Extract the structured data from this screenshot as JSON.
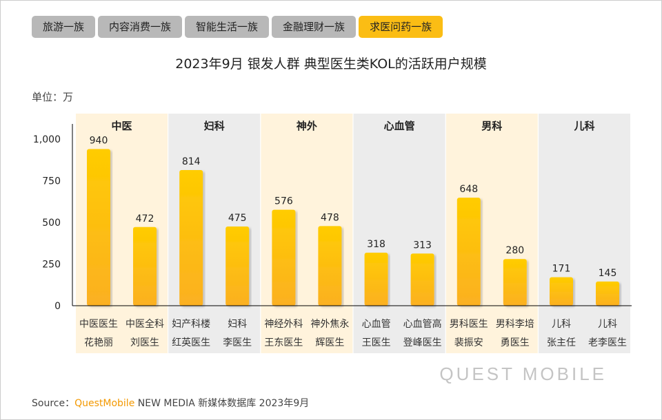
{
  "tabs": [
    {
      "label": "旅游一族",
      "active": false
    },
    {
      "label": "内容消费一族",
      "active": false
    },
    {
      "label": "智能生活一族",
      "active": false
    },
    {
      "label": "金融理财一族",
      "active": false
    },
    {
      "label": "求医问药一族",
      "active": true
    }
  ],
  "unit": "单位：万",
  "source": {
    "prefix": "Source：",
    "brand": "QuestMobile",
    "rest": " NEW MEDIA 新媒体数据库 2023年9月"
  },
  "watermark": "QUEST MOBILE",
  "colors": {
    "bar_top": "#ffcc00",
    "bar_bottom": "#fbb022",
    "band_warm": "#fff3dc",
    "band_gray": "#ececec",
    "active_tab": "#fbbd14"
  },
  "chart_data": {
    "type": "bar",
    "title": "2023年9月 银发人群 典型医生类KOL的活跃用户规模",
    "ylim": [
      0,
      1000
    ],
    "yticks": [
      "0",
      "250",
      "500",
      "750",
      "1,000"
    ],
    "groups": [
      {
        "name": "中医",
        "categories": [
          [
            "中医医生",
            "花艳丽"
          ],
          [
            "中医全科",
            "刘医生"
          ]
        ],
        "values": [
          940,
          472
        ]
      },
      {
        "name": "妇科",
        "categories": [
          [
            "妇产科楼",
            "红英医生"
          ],
          [
            "妇科",
            "李医生"
          ]
        ],
        "values": [
          814,
          475
        ]
      },
      {
        "name": "神外",
        "categories": [
          [
            "神经外科",
            "王东医生"
          ],
          [
            "神外焦永",
            "辉医生"
          ]
        ],
        "values": [
          576,
          478
        ]
      },
      {
        "name": "心血管",
        "categories": [
          [
            "心血管",
            "王医生"
          ],
          [
            "心血管高",
            "登峰医生"
          ]
        ],
        "values": [
          318,
          313
        ]
      },
      {
        "name": "男科",
        "categories": [
          [
            "男科医生",
            "裴振安"
          ],
          [
            "男科李培",
            "勇医生"
          ]
        ],
        "values": [
          648,
          280
        ]
      },
      {
        "name": "儿科",
        "categories": [
          [
            "儿科",
            "张主任"
          ],
          [
            "儿科",
            "老李医生"
          ]
        ],
        "values": [
          171,
          145
        ]
      }
    ]
  }
}
